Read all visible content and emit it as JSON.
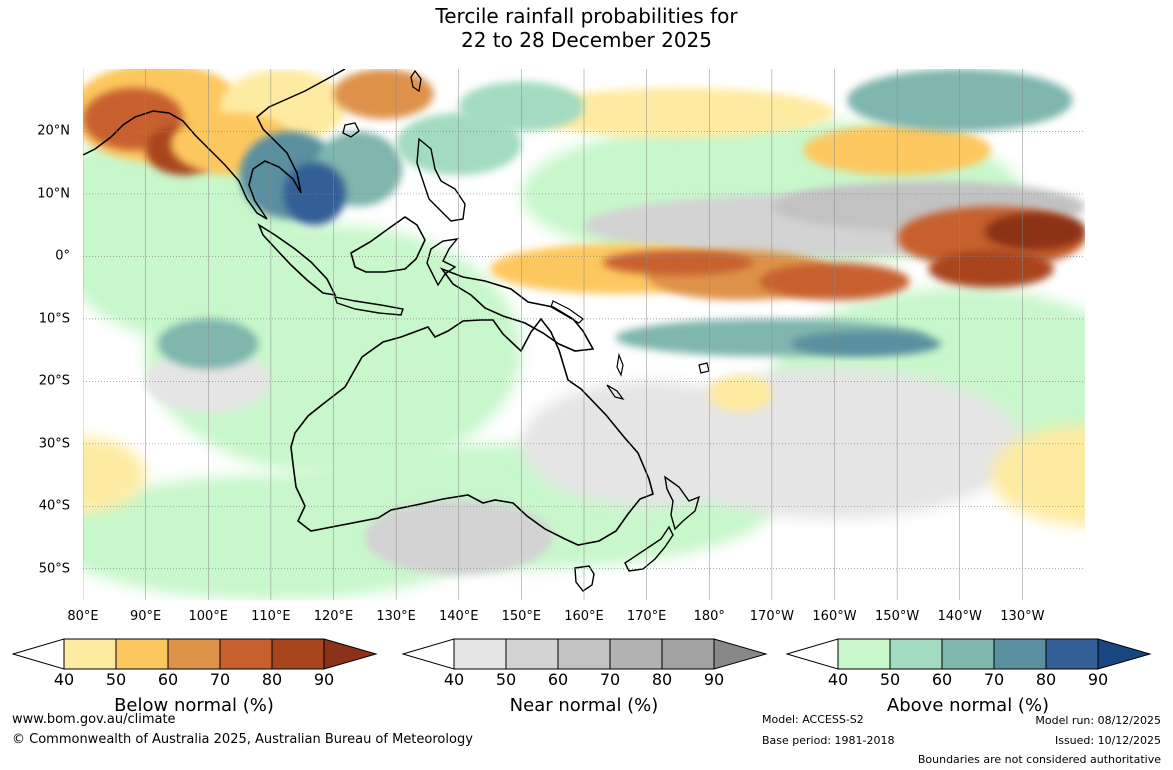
{
  "title": {
    "line1": "Tercile rainfall probabilities for",
    "line2": "22 to 28 December 2025"
  },
  "map": {
    "lat_labels": [
      "20°N",
      "10°N",
      "0°",
      "10°S",
      "20°S",
      "30°S",
      "40°S",
      "50°S"
    ],
    "lat_values": [
      20,
      10,
      0,
      -10,
      -20,
      -30,
      -40,
      -50
    ],
    "lat_range": [
      -55,
      30
    ],
    "lon_labels": [
      "80°E",
      "90°E",
      "100°E",
      "110°E",
      "120°E",
      "130°E",
      "140°E",
      "150°E",
      "160°E",
      "170°E",
      "180°",
      "170°W",
      "160°W",
      "150°W",
      "140°W",
      "130°W"
    ],
    "lon_values": [
      80,
      90,
      100,
      110,
      120,
      130,
      140,
      150,
      160,
      170,
      180,
      190,
      200,
      210,
      220,
      230
    ],
    "lon_range": [
      80,
      240
    ],
    "land_outline_color": "#000000",
    "ocean_color": "#ffffff",
    "grid_color": "#888888"
  },
  "legends": [
    {
      "id": "below",
      "title": "Below normal (%)",
      "ticks": [
        "40",
        "50",
        "60",
        "70",
        "80",
        "90"
      ],
      "colors": [
        "#ffffff",
        "#feeba2",
        "#fdc75f",
        "#de9248",
        "#c7602e",
        "#a8451f",
        "#8c3218"
      ]
    },
    {
      "id": "near",
      "title": "Near normal (%)",
      "ticks": [
        "40",
        "50",
        "60",
        "70",
        "80",
        "90"
      ],
      "colors": [
        "#ffffff",
        "#e5e5e5",
        "#d3d3d3",
        "#c2c2c2",
        "#b2b2b2",
        "#a2a2a2",
        "#888888"
      ]
    },
    {
      "id": "above",
      "title": "Above normal (%)",
      "ticks": [
        "40",
        "50",
        "60",
        "70",
        "80",
        "90"
      ],
      "colors": [
        "#ffffff",
        "#c8f7cb",
        "#a3dbc0",
        "#7fb6ad",
        "#5a8fa0",
        "#335f96",
        "#18467f"
      ]
    }
  ],
  "footer": {
    "website": "www.bom.gov.au/climate",
    "copyright": "© Commonwealth of Australia 2025, Australian Bureau of Meteorology",
    "model": "Model: ACCESS-S2",
    "base_period": "Base period: 1981-2018",
    "model_run": "Model run: 08/12/2025",
    "issued": "Issued: 10/12/2025",
    "disclaimer": "Boundaries are not considered authoritative"
  }
}
